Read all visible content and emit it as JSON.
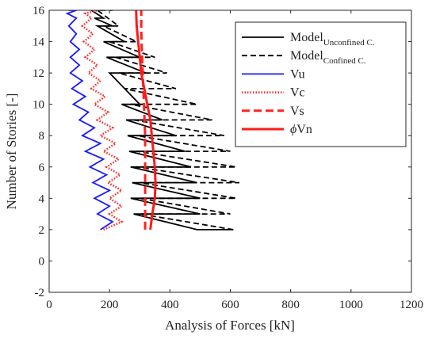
{
  "chart_data": {
    "type": "line",
    "xlabel": "Analysis of Forces [kN]",
    "ylabel": "Number of Stories [-]",
    "xlim": [
      0,
      1200
    ],
    "ylim": [
      -2,
      16
    ],
    "xticks": [
      0,
      200,
      400,
      600,
      800,
      1000,
      1200
    ],
    "yticks": [
      -2,
      0,
      2,
      4,
      6,
      8,
      10,
      12,
      14,
      16
    ],
    "grid": false,
    "legend_position": "top-right",
    "series": [
      {
        "name": "Model_Unconfined C.",
        "legend_main": "Model",
        "legend_sub": "Unconfined C.",
        "color": "#000000",
        "style": "solid",
        "x": [
          610,
          490,
          280,
          500,
          270,
          500,
          275,
          490,
          270,
          470,
          265,
          450,
          260,
          420,
          255,
          375,
          240,
          300,
          200,
          320,
          190,
          300,
          180,
          250,
          160,
          210,
          150,
          180,
          140
        ],
        "y": [
          2,
          2,
          3,
          3,
          4,
          4,
          5,
          5,
          6,
          6,
          7,
          7,
          8,
          8,
          9,
          9,
          10,
          10,
          12,
          12,
          13,
          13,
          14,
          14,
          15,
          15,
          15.5,
          15.5,
          16
        ]
      },
      {
        "name": "Model_Confined C.",
        "legend_main": "Model",
        "legend_sub": "Confined C.",
        "color": "#000000",
        "style": "dashed",
        "x": [
          610,
          300,
          600,
          300,
          620,
          300,
          630,
          290,
          620,
          290,
          600,
          290,
          580,
          280,
          540,
          270,
          490,
          250,
          420,
          230,
          390,
          220,
          350,
          200,
          290,
          180,
          230,
          160,
          210
        ],
        "y": [
          2,
          3,
          3,
          4,
          4,
          5,
          5,
          6,
          6,
          7,
          7,
          8,
          8,
          9,
          9,
          10,
          10,
          11,
          11,
          12,
          12,
          13,
          13,
          14,
          14,
          15,
          15,
          16,
          16
        ]
      },
      {
        "name": "Vu",
        "color": "#1a1aff",
        "style": "solid",
        "x": [
          170,
          210,
          160,
          200,
          150,
          200,
          145,
          190,
          135,
          180,
          120,
          170,
          110,
          150,
          100,
          130,
          80,
          120,
          75,
          110,
          70,
          100,
          70,
          100,
          70,
          90,
          65,
          90,
          60,
          90,
          65
        ],
        "y": [
          2,
          2.5,
          3,
          3.5,
          4,
          4.5,
          5,
          5.5,
          6,
          6.5,
          7,
          7.5,
          8,
          8.5,
          9,
          9.5,
          10,
          10.5,
          11,
          11.5,
          12,
          12.5,
          13,
          13.5,
          14,
          14.5,
          15,
          15.5,
          15.8,
          16,
          16
        ]
      },
      {
        "name": "Vc",
        "color": "#ff2222",
        "style": "dotted",
        "x": [
          180,
          240,
          200,
          240,
          200,
          240,
          195,
          235,
          190,
          230,
          180,
          220,
          170,
          210,
          160,
          195,
          150,
          185,
          140,
          170,
          130,
          160,
          120,
          150,
          115,
          145,
          110,
          140,
          120,
          160,
          150
        ],
        "y": [
          2,
          2.5,
          3,
          3.5,
          4,
          4.5,
          5,
          5.5,
          6,
          6.5,
          7,
          7.5,
          8,
          8.5,
          9,
          9.5,
          10,
          10.5,
          11,
          11.5,
          12,
          12.5,
          13,
          13.5,
          14,
          14.5,
          15,
          15.5,
          15.8,
          16,
          16
        ]
      },
      {
        "name": "Vs",
        "color": "#ff2222",
        "style": "dashed",
        "x": [
          318,
          318,
          318,
          318,
          318,
          318,
          318,
          316,
          314,
          312,
          310,
          308,
          306,
          305,
          305
        ],
        "y": [
          2,
          3,
          4,
          5,
          6,
          7,
          8,
          9,
          10,
          11,
          12,
          13,
          14,
          15,
          16
        ]
      },
      {
        "name": "ϕVn",
        "legend_symbol": "ϕ",
        "legend_text": "Vn",
        "color": "#ff1a1a",
        "style": "solid",
        "x": [
          335,
          342,
          350,
          352,
          350,
          345,
          340,
          335,
          325,
          315,
          305,
          300,
          295,
          290,
          288
        ],
        "y": [
          2,
          3,
          4,
          5,
          6,
          7,
          8,
          9,
          10,
          11,
          12,
          13,
          14,
          15,
          16
        ]
      }
    ]
  }
}
